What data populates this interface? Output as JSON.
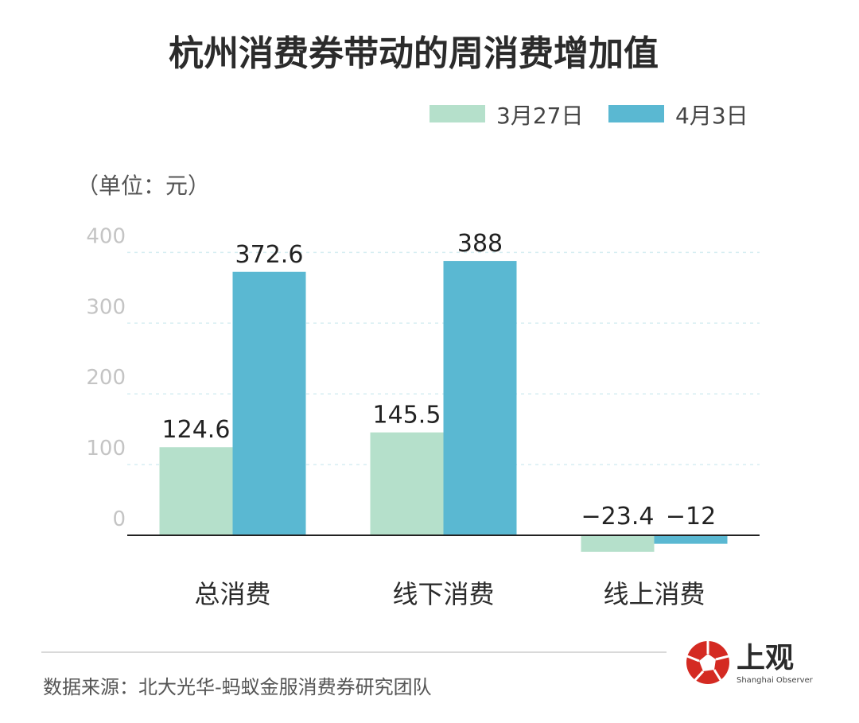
{
  "chart_data": {
    "type": "bar",
    "title": "杭州消费券带动的周消费增加值",
    "unit_label": "（单位：元）",
    "categories": [
      "总消费",
      "线下消费",
      "线上消费"
    ],
    "series": [
      {
        "name": "3月27日",
        "color": "#b5e0cb",
        "values": [
          124.6,
          145.5,
          -23.4
        ],
        "labels": [
          "124.6",
          "145.5",
          "−23.4"
        ]
      },
      {
        "name": "4月3日",
        "color": "#5ab8d2",
        "values": [
          372.6,
          388,
          -12
        ],
        "labels": [
          "372.6",
          "388",
          "−12"
        ]
      }
    ],
    "yticks": [
      0,
      100,
      200,
      300,
      400
    ],
    "ylim": [
      -30,
      400
    ],
    "grid": true,
    "legend_position": "top-right"
  },
  "footer": {
    "source": "数据来源：北大光华-蚂蚁金服消费券研究团队",
    "brand_name": "上观",
    "brand_sub": "Shanghai Observer"
  },
  "colors": {
    "axis": "#222222",
    "grid": "#d6eef2",
    "divider": "#d9d9d9",
    "logo_red": "#d42a22"
  }
}
